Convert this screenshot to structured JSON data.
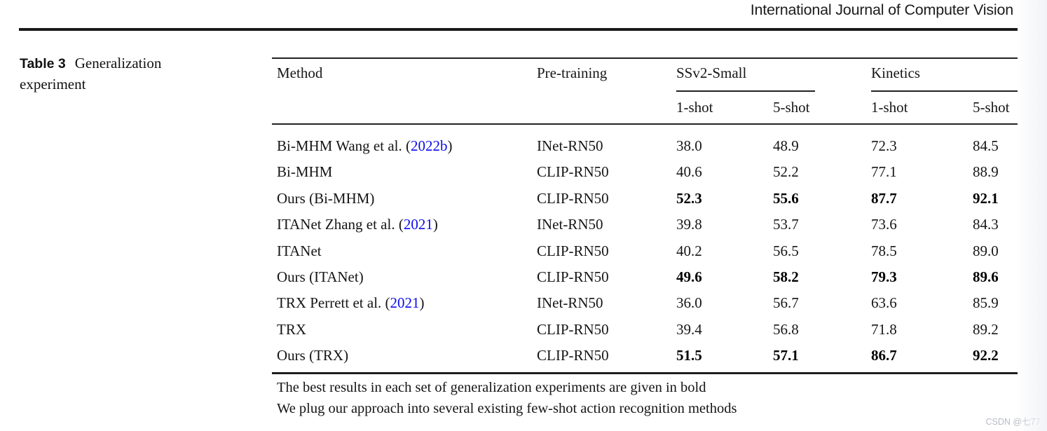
{
  "journal": "International Journal of Computer Vision",
  "caption": {
    "label": "Table 3",
    "title": "Generalization experiment"
  },
  "table": {
    "col_method": "Method",
    "col_pretraining": "Pre-training",
    "group1": "SSv2-Small",
    "group2": "Kinetics",
    "sub1": "1-shot",
    "sub2": "5-shot",
    "sub3": "1-shot",
    "sub4": "5-shot",
    "rows": [
      {
        "m": "Bi-MHM Wang et al. (",
        "cite": "2022b",
        "ms": ")",
        "pt": "INet-RN50",
        "v": [
          "38.0",
          "48.9",
          "72.3",
          "84.5"
        ]
      },
      {
        "m": "Bi-MHM",
        "cite": "",
        "ms": "",
        "pt": "CLIP-RN50",
        "v": [
          "40.6",
          "52.2",
          "77.1",
          "88.9"
        ]
      },
      {
        "m": "Ours (Bi-MHM)",
        "cite": "",
        "ms": "",
        "pt": "CLIP-RN50",
        "v": [
          "52.3",
          "55.6",
          "87.7",
          "92.1"
        ]
      },
      {
        "m": "ITANet Zhang et al. (",
        "cite": "2021",
        "ms": ")",
        "pt": "INet-RN50",
        "v": [
          "39.8",
          "53.7",
          "73.6",
          "84.3"
        ]
      },
      {
        "m": "ITANet",
        "cite": "",
        "ms": "",
        "pt": "CLIP-RN50",
        "v": [
          "40.2",
          "56.5",
          "78.5",
          "89.0"
        ]
      },
      {
        "m": "Ours (ITANet)",
        "cite": "",
        "ms": "",
        "pt": "CLIP-RN50",
        "v": [
          "49.6",
          "58.2",
          "79.3",
          "89.6"
        ]
      },
      {
        "m": "TRX Perrett et al. (",
        "cite": "2021",
        "ms": ")",
        "pt": "INet-RN50",
        "v": [
          "36.0",
          "56.7",
          "63.6",
          "85.9"
        ]
      },
      {
        "m": "TRX",
        "cite": "",
        "ms": "",
        "pt": "CLIP-RN50",
        "v": [
          "39.4",
          "56.8",
          "71.8",
          "89.2"
        ]
      },
      {
        "m": "Ours (TRX)",
        "cite": "",
        "ms": "",
        "pt": "CLIP-RN50",
        "v": [
          "51.5",
          "57.1",
          "86.7",
          "92.2"
        ]
      }
    ]
  },
  "notes": [
    "The best results in each set of generalization experiments are given in bold",
    "We plug our approach into several existing few-shot action recognition methods"
  ],
  "watermark": "CSDN @七77."
}
